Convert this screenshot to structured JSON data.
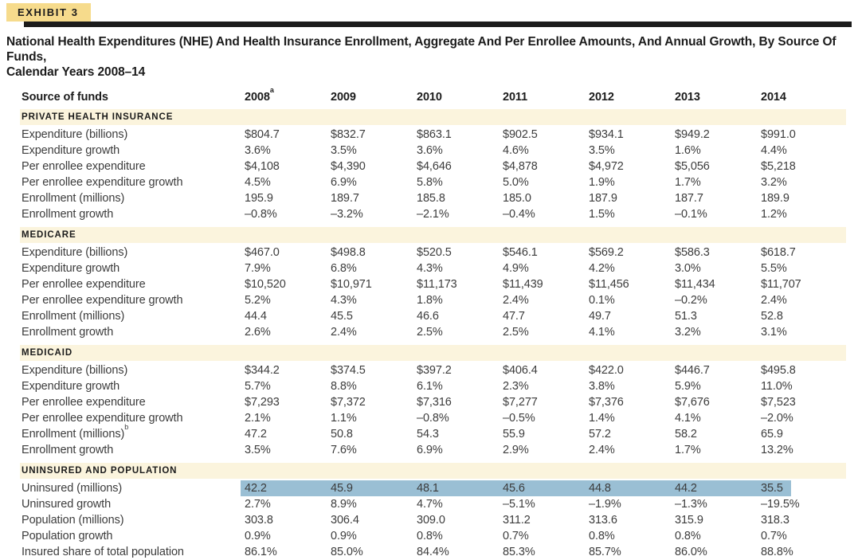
{
  "exhibit": {
    "label": "EXHIBIT 3"
  },
  "title_line1": "National Health Expenditures (NHE) And Health Insurance Enrollment, Aggregate And Per Enrollee Amounts, And Annual Growth, By Source Of Funds,",
  "title_line2": "Calendar Years 2008–14",
  "colors": {
    "accent_tag": "#F6DB8C",
    "section_band": "#FBF4DD",
    "row_highlight": "#9ABFD4",
    "rule": "#1C1C1C",
    "text": "#3C3C3C",
    "heading_text": "#1B1B1B"
  },
  "table": {
    "row_header": "Source of funds",
    "columns": [
      {
        "label": "2008",
        "sup": "a"
      },
      {
        "label": "2009",
        "sup": ""
      },
      {
        "label": "2010",
        "sup": ""
      },
      {
        "label": "2011",
        "sup": ""
      },
      {
        "label": "2012",
        "sup": ""
      },
      {
        "label": "2013",
        "sup": ""
      },
      {
        "label": "2014",
        "sup": ""
      }
    ],
    "sections": [
      {
        "title": "PRIVATE HEALTH INSURANCE",
        "rows": [
          {
            "label": "Expenditure (billions)",
            "sup": "",
            "highlight": false,
            "values": [
              "$804.7",
              "$832.7",
              "$863.1",
              "$902.5",
              "$934.1",
              "$949.2",
              "$991.0"
            ]
          },
          {
            "label": "Expenditure growth",
            "sup": "",
            "highlight": false,
            "values": [
              "3.6%",
              "3.5%",
              "3.6%",
              "4.6%",
              "3.5%",
              "1.6%",
              "4.4%"
            ]
          },
          {
            "label": "Per enrollee expenditure",
            "sup": "",
            "highlight": false,
            "values": [
              "$4,108",
              "$4,390",
              "$4,646",
              "$4,878",
              "$4,972",
              "$5,056",
              "$5,218"
            ]
          },
          {
            "label": "Per enrollee expenditure growth",
            "sup": "",
            "highlight": false,
            "values": [
              "4.5%",
              "6.9%",
              "5.8%",
              "5.0%",
              "1.9%",
              "1.7%",
              "3.2%"
            ]
          },
          {
            "label": "Enrollment (millions)",
            "sup": "",
            "highlight": false,
            "values": [
              "195.9",
              "189.7",
              "185.8",
              "185.0",
              "187.9",
              "187.7",
              "189.9"
            ]
          },
          {
            "label": "Enrollment growth",
            "sup": "",
            "highlight": false,
            "values": [
              "–0.8%",
              "–3.2%",
              "–2.1%",
              "–0.4%",
              "1.5%",
              "–0.1%",
              "1.2%"
            ]
          }
        ]
      },
      {
        "title": "MEDICARE",
        "rows": [
          {
            "label": "Expenditure (billions)",
            "sup": "",
            "highlight": false,
            "values": [
              "$467.0",
              "$498.8",
              "$520.5",
              "$546.1",
              "$569.2",
              "$586.3",
              "$618.7"
            ]
          },
          {
            "label": "Expenditure growth",
            "sup": "",
            "highlight": false,
            "values": [
              "7.9%",
              "6.8%",
              "4.3%",
              "4.9%",
              "4.2%",
              "3.0%",
              "5.5%"
            ]
          },
          {
            "label": "Per enrollee expenditure",
            "sup": "",
            "highlight": false,
            "values": [
              "$10,520",
              "$10,971",
              "$11,173",
              "$11,439",
              "$11,456",
              "$11,434",
              "$11,707"
            ]
          },
          {
            "label": "Per enrollee expenditure growth",
            "sup": "",
            "highlight": false,
            "values": [
              "5.2%",
              "4.3%",
              "1.8%",
              "2.4%",
              "0.1%",
              "–0.2%",
              "2.4%"
            ]
          },
          {
            "label": "Enrollment (millions)",
            "sup": "",
            "highlight": false,
            "values": [
              "44.4",
              "45.5",
              "46.6",
              "47.7",
              "49.7",
              "51.3",
              "52.8"
            ]
          },
          {
            "label": "Enrollment growth",
            "sup": "",
            "highlight": false,
            "values": [
              "2.6%",
              "2.4%",
              "2.5%",
              "2.5%",
              "4.1%",
              "3.2%",
              "3.1%"
            ]
          }
        ]
      },
      {
        "title": "MEDICAID",
        "rows": [
          {
            "label": "Expenditure (billions)",
            "sup": "",
            "highlight": false,
            "values": [
              "$344.2",
              "$374.5",
              "$397.2",
              "$406.4",
              "$422.0",
              "$446.7",
              "$495.8"
            ]
          },
          {
            "label": "Expenditure growth",
            "sup": "",
            "highlight": false,
            "values": [
              "5.7%",
              "8.8%",
              "6.1%",
              "2.3%",
              "3.8%",
              "5.9%",
              "11.0%"
            ]
          },
          {
            "label": "Per enrollee expenditure",
            "sup": "",
            "highlight": false,
            "values": [
              "$7,293",
              "$7,372",
              "$7,316",
              "$7,277",
              "$7,376",
              "$7,676",
              "$7,523"
            ]
          },
          {
            "label": "Per enrollee expenditure growth",
            "sup": "",
            "highlight": false,
            "values": [
              "2.1%",
              "1.1%",
              "–0.8%",
              "–0.5%",
              "1.4%",
              "4.1%",
              "–2.0%"
            ]
          },
          {
            "label": "Enrollment (millions)",
            "sup": "b",
            "highlight": false,
            "values": [
              "47.2",
              "50.8",
              "54.3",
              "55.9",
              "57.2",
              "58.2",
              "65.9"
            ]
          },
          {
            "label": "Enrollment growth",
            "sup": "",
            "highlight": false,
            "values": [
              "3.5%",
              "7.6%",
              "6.9%",
              "2.9%",
              "2.4%",
              "1.7%",
              "13.2%"
            ]
          }
        ]
      },
      {
        "title": "UNINSURED AND POPULATION",
        "rows": [
          {
            "label": "Uninsured (millions)",
            "sup": "",
            "highlight": true,
            "values": [
              "42.2",
              "45.9",
              "48.1",
              "45.6",
              "44.8",
              "44.2",
              "35.5"
            ]
          },
          {
            "label": "Uninsured growth",
            "sup": "",
            "highlight": false,
            "values": [
              "2.7%",
              "8.9%",
              "4.7%",
              "–5.1%",
              "–1.9%",
              "–1.3%",
              "–19.5%"
            ]
          },
          {
            "label": "Population (millions)",
            "sup": "",
            "highlight": false,
            "values": [
              "303.8",
              "306.4",
              "309.0",
              "311.2",
              "313.6",
              "315.9",
              "318.3"
            ]
          },
          {
            "label": "Population growth",
            "sup": "",
            "highlight": false,
            "values": [
              "0.9%",
              "0.9%",
              "0.8%",
              "0.7%",
              "0.8%",
              "0.8%",
              "0.7%"
            ]
          },
          {
            "label": "Insured share of total population",
            "sup": "",
            "highlight": false,
            "values": [
              "86.1%",
              "85.0%",
              "84.4%",
              "85.3%",
              "85.7%",
              "86.0%",
              "88.8%"
            ]
          }
        ]
      }
    ]
  }
}
